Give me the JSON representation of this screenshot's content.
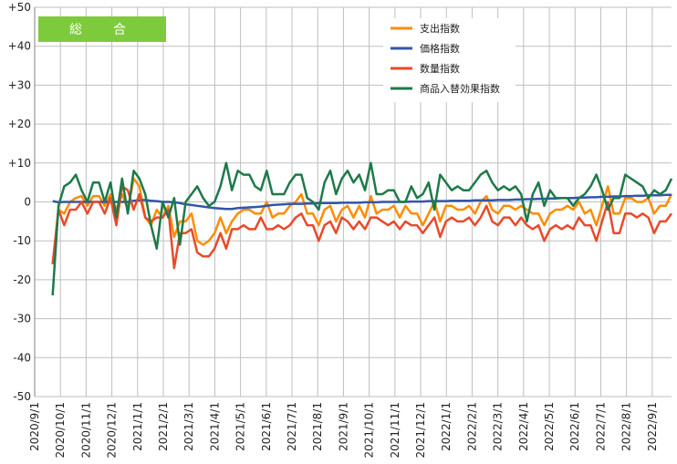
{
  "chart_data": {
    "type": "line",
    "title": "総　合",
    "xlabel": "",
    "ylabel": "",
    "ylim": [
      -50,
      50
    ],
    "y_ticks": [
      "+50",
      "+40",
      "+30",
      "+20",
      "+10",
      "0",
      "-10",
      "-20",
      "-30",
      "-40",
      "-50"
    ],
    "x_tick_labels": [
      "2020/9/1",
      "2020/10/1",
      "2020/11/1",
      "2020/12/1",
      "2021/1/1",
      "2021/2/1",
      "2021/3/1",
      "2021/4/1",
      "2021/5/1",
      "2021/6/1",
      "2021/7/1",
      "2021/8/1",
      "2021/9/1",
      "2021/10/1",
      "2021/11/1",
      "2021/12/1",
      "2022/1/1",
      "2022/2/1",
      "2022/3/1",
      "2022/4/1",
      "2022/5/1",
      "2022/6/1",
      "2022/7/1",
      "2022/8/1",
      "2022/9/1"
    ],
    "grid": true,
    "legend_position": "top-right",
    "colors": {
      "badge": "#7dcb3c",
      "grid": "#bfbfbf",
      "axis": "#808080"
    },
    "series": [
      {
        "name": "支出指数",
        "color": "#ff8c00",
        "values": [
          -16,
          -2,
          -3,
          0,
          1,
          1.5,
          -1,
          1.5,
          1.5,
          -1,
          2,
          -2,
          2,
          -2,
          6,
          4,
          -4,
          -6,
          -2,
          -4,
          -1,
          -9,
          -5,
          -5,
          -3,
          -10,
          -11,
          -10,
          -8,
          -4,
          -8,
          -5,
          -3,
          -2,
          -2,
          -3,
          -3,
          0,
          -4,
          -3,
          -3,
          -1,
          0,
          2,
          -3,
          -3,
          -6,
          -2,
          -1,
          -5,
          -2,
          -1,
          -4,
          -1,
          -4,
          1.5,
          -3,
          -2,
          -2,
          -1,
          -4,
          -1,
          -3,
          -3,
          -6,
          -3,
          0,
          -5,
          -1,
          -1,
          -2,
          -2,
          -1,
          -3,
          0,
          1.5,
          -2,
          -3,
          -1,
          -1,
          -2,
          -1,
          -2,
          -3,
          -3,
          -6,
          -3,
          -2,
          -2,
          -1,
          -2,
          0,
          -3,
          -2,
          -6,
          -1,
          4,
          -3,
          -3,
          1,
          1,
          0,
          0,
          1,
          -3,
          -1,
          -1,
          2
        ]
      },
      {
        "name": "価格指数",
        "color": "#3355aa",
        "values": [
          0.2,
          -0.1,
          0,
          0,
          0,
          0,
          0,
          0,
          0,
          0,
          0,
          0,
          0,
          0,
          0.3,
          0.4,
          0.5,
          0.3,
          0.2,
          0,
          0,
          -0.1,
          -0.3,
          -0.6,
          -0.8,
          -1,
          -1.2,
          -1.4,
          -1.6,
          -1.7,
          -1.8,
          -1.8,
          -1.6,
          -1.5,
          -1.4,
          -1.3,
          -1.2,
          -1,
          -0.8,
          -0.7,
          -0.6,
          -0.5,
          -0.5,
          -0.5,
          -0.4,
          -0.4,
          -0.3,
          -0.3,
          -0.3,
          -0.3,
          -0.2,
          -0.2,
          -0.2,
          -0.2,
          -0.1,
          -0.1,
          -0.1,
          0,
          0,
          0,
          0,
          0,
          0.1,
          0.1,
          0.1,
          0.2,
          0.2,
          0.2,
          0.2,
          0.3,
          0.3,
          0.3,
          0.3,
          0.4,
          0.4,
          0.4,
          0.4,
          0.5,
          0.5,
          0.5,
          0.6,
          0.6,
          0.7,
          0.7,
          0.8,
          0.8,
          0.9,
          0.9,
          1,
          1,
          1,
          1.1,
          1.1,
          1.2,
          1.2,
          1.3,
          1.3,
          1.4,
          1.4,
          1.5,
          1.5,
          1.6,
          1.6,
          1.7,
          1.7,
          1.7,
          1.8,
          1.8
        ]
      },
      {
        "name": "数量指数",
        "color": "#e84a2a",
        "values": [
          -16,
          -2,
          -6,
          -2,
          -2,
          0,
          -3,
          0,
          0,
          -3,
          1,
          -6,
          4,
          3,
          -2,
          2,
          -4,
          -5,
          -4,
          -4,
          -2,
          -17,
          -8,
          -8,
          -7,
          -13,
          -14,
          -14,
          -12,
          -8,
          -12,
          -7,
          -7,
          -6,
          -7,
          -7,
          -4,
          -7,
          -7,
          -6,
          -7,
          -6,
          -4,
          -3,
          -6,
          -6,
          -10,
          -6,
          -5,
          -8,
          -4,
          -5,
          -7,
          -5,
          -7,
          -4,
          -4,
          -5,
          -6,
          -5,
          -7,
          -5,
          -6,
          -6,
          -8,
          -6,
          -4,
          -9,
          -5,
          -4,
          -5,
          -5,
          -4,
          -6,
          -4,
          -1,
          -5,
          -6,
          -4,
          -4,
          -6,
          -4,
          -6,
          -7,
          -6,
          -10,
          -7,
          -6,
          -7,
          -6,
          -7,
          -4,
          -6,
          -6,
          -10,
          -5,
          0,
          -8,
          -8,
          -3,
          -3,
          -4,
          -3,
          -4,
          -8,
          -5,
          -5,
          -3
        ]
      },
      {
        "name": "商品入替効果指数",
        "color": "#1d7a4a",
        "values": [
          -24,
          -1,
          4,
          5,
          7,
          3,
          0,
          5,
          5,
          0,
          5,
          -4,
          6,
          -3,
          8,
          6,
          2,
          -6,
          -12,
          0,
          -4,
          1,
          -11,
          0,
          2,
          4,
          1,
          -1,
          0,
          4,
          10,
          3,
          8,
          7,
          7,
          4,
          3,
          8,
          2,
          2,
          2,
          5,
          7,
          7,
          1,
          0,
          -2,
          5,
          8,
          2,
          6,
          8,
          5,
          7,
          3,
          10,
          2,
          2,
          3,
          3,
          0,
          0,
          4,
          1,
          2,
          5,
          -2,
          7,
          5,
          3,
          4,
          3,
          3,
          5,
          7,
          8,
          5,
          3,
          4,
          3,
          4,
          2,
          -5,
          2,
          5,
          -1,
          3,
          1,
          1,
          1,
          -1,
          1,
          2,
          4,
          7,
          3,
          -2,
          1,
          1,
          7,
          6,
          5,
          4,
          1,
          3,
          2,
          3,
          6
        ]
      }
    ]
  }
}
